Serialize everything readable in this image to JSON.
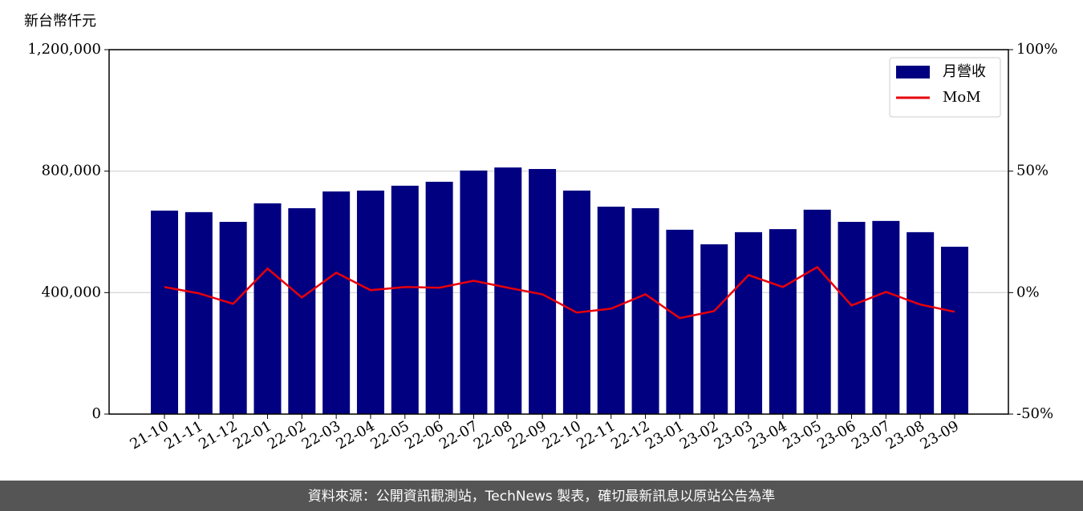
{
  "chart_data": {
    "type": "bar_line",
    "ylabel": "新台幣仟元",
    "categories": [
      "21-10",
      "21-11",
      "21-12",
      "22-01",
      "22-02",
      "22-03",
      "22-04",
      "22-05",
      "22-06",
      "22-07",
      "22-08",
      "22-09",
      "22-10",
      "22-11",
      "22-12",
      "23-01",
      "23-02",
      "23-03",
      "23-04",
      "23-05",
      "23-06",
      "23-07",
      "23-08",
      "23-09"
    ],
    "series": [
      {
        "name": "月營收",
        "type": "bar",
        "color": "#000080",
        "values": [
          670000,
          665000,
          633000,
          694000,
          678000,
          733000,
          736000,
          752000,
          765000,
          802000,
          812000,
          807000,
          736000,
          683000,
          678000,
          607000,
          559000,
          599000,
          609000,
          673000,
          633000,
          636000,
          599000,
          551000
        ]
      },
      {
        "name": "MoM",
        "type": "line",
        "color": "#e8000b",
        "axis": "y2",
        "values": [
          2.3,
          -0.3,
          -4.6,
          9.9,
          -2.0,
          8.2,
          1.0,
          2.3,
          2.0,
          4.9,
          2.0,
          -0.7,
          -8.2,
          -6.6,
          -0.7,
          -10.5,
          -7.6,
          7.2,
          2.3,
          10.5,
          -5.3,
          0.3,
          -4.9,
          -7.9
        ]
      }
    ],
    "ylim": [
      0,
      1200000
    ],
    "yticks": [
      0,
      {
        "value": 400000,
        "label": "400,000"
      },
      {
        "value": 800000,
        "label": "800,000"
      },
      {
        "value": 1200000,
        "label": "1,200,000"
      }
    ],
    "y2lim": [
      -50,
      100
    ],
    "y2ticks": [
      {
        "value": -50,
        "label": "-50%"
      },
      {
        "value": 0,
        "label": "0%"
      },
      {
        "value": 50,
        "label": "50%"
      },
      {
        "value": 100,
        "label": "100%"
      }
    ],
    "grid": true,
    "legend": "upper-right",
    "footer": "資料來源：公開資訊觀測站，TechNews 製表，確切最新訊息以原站公告為準"
  }
}
